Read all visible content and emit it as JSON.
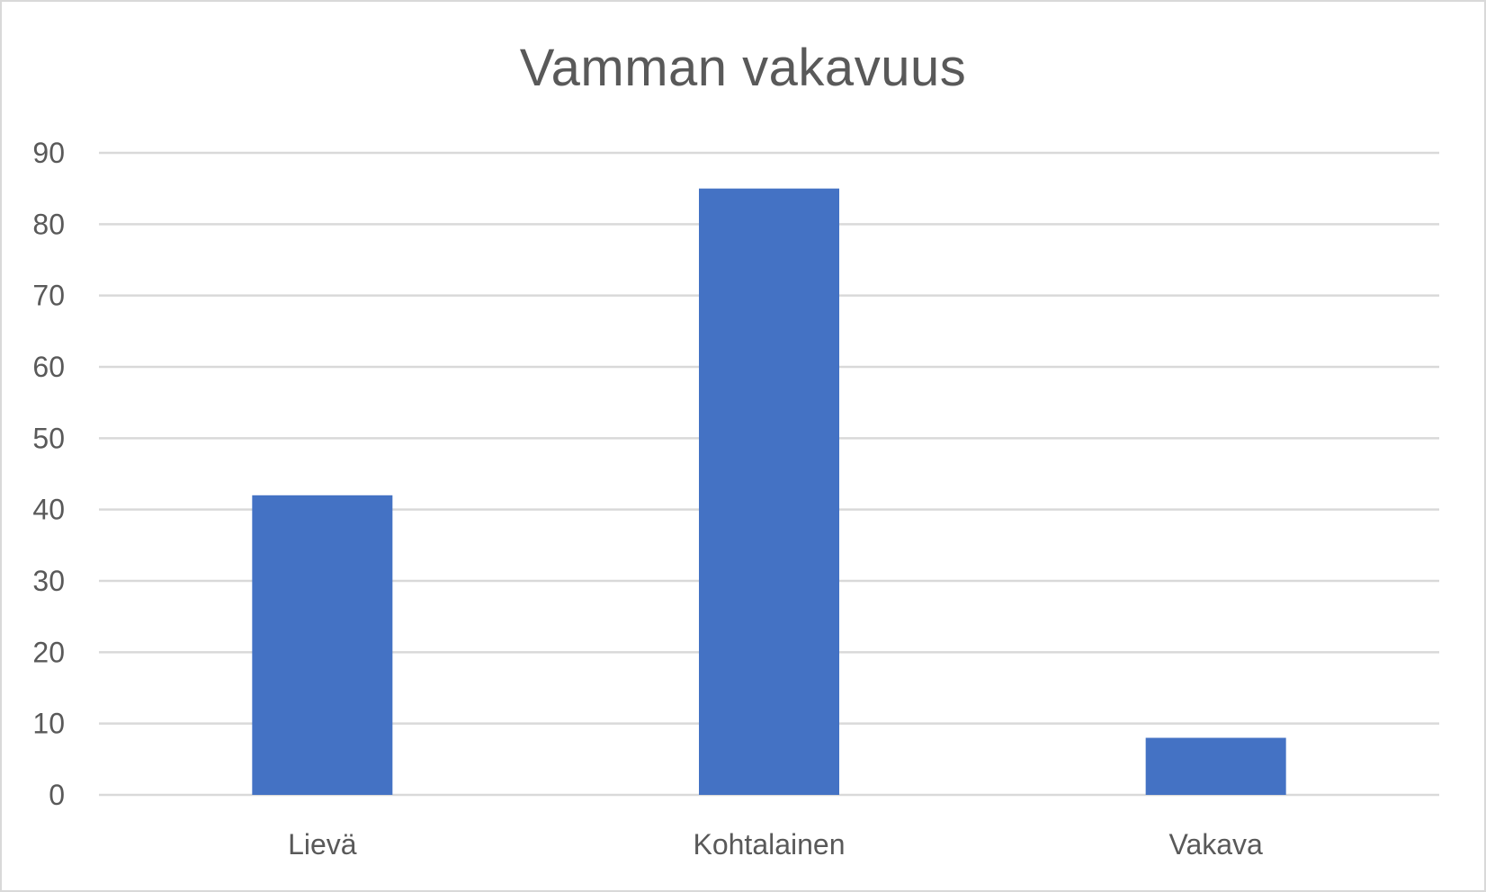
{
  "chart_data": {
    "type": "bar",
    "title": "Vamman vakavuus",
    "xlabel": "",
    "ylabel": "",
    "categories": [
      "Lievä",
      "Kohtalainen",
      "Vakava"
    ],
    "values": [
      42,
      85,
      8
    ],
    "ylim": [
      0,
      90
    ],
    "yticks": [
      0,
      10,
      20,
      30,
      40,
      50,
      60,
      70,
      80,
      90
    ],
    "grid": true,
    "legend": "none",
    "bar_color": "#4472C4",
    "grid_color": "#d9d9d9",
    "text_color": "#595959"
  }
}
